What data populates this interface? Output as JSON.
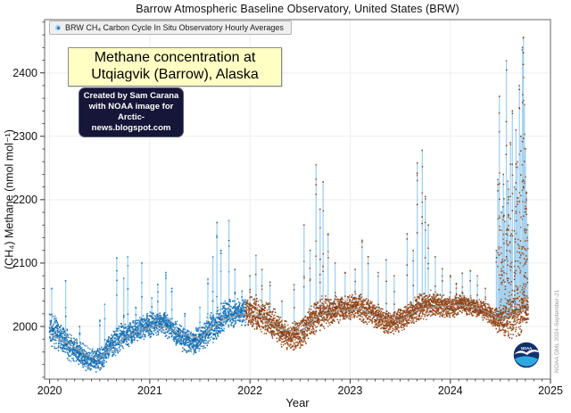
{
  "title": "Barrow Atmospheric Baseline Observatory, United States (BRW)",
  "legend": {
    "label": "BRW CH₄ Carbon Cycle In Situ Observatory Hourly Averages"
  },
  "annotation_box": {
    "line1": "Methane concentration at",
    "line2": "Utqiagvik (Barrow), Alaska"
  },
  "credit_box": {
    "line1": "Created by Sam Carana",
    "line2": "with NOAA image for",
    "line3": "Arctic-news.blogspot.com"
  },
  "watermark": "NOAA GML 2024-September-21",
  "noaa_logo": {
    "label": "NOAA",
    "navy": "#12316b",
    "blue": "#2fa8e1"
  },
  "chart_data": {
    "type": "scatter",
    "title": "Barrow Atmospheric Baseline Observatory, United States (BRW)",
    "xlabel": "Year",
    "ylabel": "(CH₄) Methane (nmol mol⁻¹)",
    "xlim": [
      2019.95,
      2025
    ],
    "ylim": [
      1917,
      2484
    ],
    "x_ticks": [
      "2020",
      "2021",
      "2022",
      "2023",
      "2024",
      "2025"
    ],
    "x_tick_values": [
      2020,
      2021,
      2022,
      2023,
      2024,
      2025
    ],
    "y_ticks": [
      "2000",
      "2100",
      "2200",
      "2300",
      "2400"
    ],
    "y_tick_values": [
      2000,
      2100,
      2200,
      2300,
      2400
    ],
    "x_minor_step": 0.08333,
    "y_minor_step": 20,
    "grid": true,
    "t_start": 2020.0,
    "t_end": 2024.78,
    "color_change_year": 2021.96,
    "colors": {
      "spike": "#a4d1f0",
      "dots_early": [
        "#0f5f9e",
        "#1a6fb0",
        "#2a7fc0",
        "#3f93cf"
      ],
      "dots_late": [
        "#8a421a",
        "#9c4f20",
        "#ad6030",
        "#7c3a14"
      ],
      "trend": "#9e9e9e",
      "grid": "#ededed",
      "spine": "#666666",
      "tick": "#333333"
    },
    "envelope": [
      [
        2020.0,
        1965,
        2030
      ],
      [
        2020.1,
        1958,
        2010
      ],
      [
        2020.2,
        1945,
        1992
      ],
      [
        2020.3,
        1935,
        1980
      ],
      [
        2020.4,
        1926,
        1968
      ],
      [
        2020.5,
        1928,
        1970
      ],
      [
        2020.6,
        1945,
        1990
      ],
      [
        2020.7,
        1958,
        2005
      ],
      [
        2020.8,
        1968,
        2010
      ],
      [
        2020.9,
        1976,
        2018
      ],
      [
        2021.0,
        1982,
        2024
      ],
      [
        2021.1,
        1984,
        2028
      ],
      [
        2021.2,
        1978,
        2022
      ],
      [
        2021.3,
        1962,
        2005
      ],
      [
        2021.4,
        1955,
        1998
      ],
      [
        2021.5,
        1958,
        2002
      ],
      [
        2021.6,
        1970,
        2020
      ],
      [
        2021.7,
        1982,
        2040
      ],
      [
        2021.8,
        1994,
        2046
      ],
      [
        2021.9,
        2000,
        2046
      ],
      [
        2022.0,
        1996,
        2050
      ],
      [
        2022.1,
        1990,
        2046
      ],
      [
        2022.2,
        1982,
        2038
      ],
      [
        2022.3,
        1968,
        2018
      ],
      [
        2022.4,
        1960,
        2005
      ],
      [
        2022.5,
        1964,
        2014
      ],
      [
        2022.6,
        1975,
        2035
      ],
      [
        2022.7,
        1990,
        2052
      ],
      [
        2022.8,
        2000,
        2050
      ],
      [
        2022.9,
        2006,
        2048
      ],
      [
        2023.0,
        2008,
        2052
      ],
      [
        2023.1,
        2006,
        2054
      ],
      [
        2023.2,
        2000,
        2046
      ],
      [
        2023.3,
        1990,
        2032
      ],
      [
        2023.4,
        1986,
        2025
      ],
      [
        2023.5,
        1990,
        2030
      ],
      [
        2023.6,
        1998,
        2042
      ],
      [
        2023.7,
        2006,
        2055
      ],
      [
        2023.8,
        2012,
        2058
      ],
      [
        2023.9,
        2012,
        2055
      ],
      [
        2024.0,
        2012,
        2050
      ],
      [
        2024.1,
        2016,
        2054
      ],
      [
        2024.2,
        2016,
        2050
      ],
      [
        2024.3,
        2010,
        2044
      ],
      [
        2024.4,
        2002,
        2036
      ],
      [
        2024.48,
        1988,
        2030
      ],
      [
        2024.55,
        1982,
        2040
      ],
      [
        2024.62,
        1978,
        2060
      ],
      [
        2024.7,
        1982,
        2070
      ],
      [
        2024.78,
        1990,
        2060
      ]
    ],
    "spikes": [
      [
        2020.02,
        2060
      ],
      [
        2020.16,
        2072
      ],
      [
        2020.3,
        2000
      ],
      [
        2020.5,
        2010
      ],
      [
        2020.55,
        2035
      ],
      [
        2020.67,
        2108
      ],
      [
        2020.74,
        2076
      ],
      [
        2020.78,
        2110
      ],
      [
        2020.86,
        2030
      ],
      [
        2020.92,
        2100
      ],
      [
        2021.02,
        2045
      ],
      [
        2021.08,
        2066
      ],
      [
        2021.16,
        2085
      ],
      [
        2021.22,
        2060
      ],
      [
        2021.35,
        2020
      ],
      [
        2021.5,
        2030
      ],
      [
        2021.58,
        2075
      ],
      [
        2021.63,
        2110
      ],
      [
        2021.67,
        2164
      ],
      [
        2021.71,
        2120
      ],
      [
        2021.79,
        2167
      ],
      [
        2021.85,
        2090
      ],
      [
        2021.92,
        2056
      ],
      [
        2022.0,
        2080
      ],
      [
        2022.06,
        2112
      ],
      [
        2022.12,
        2090
      ],
      [
        2022.2,
        2070
      ],
      [
        2022.32,
        2040
      ],
      [
        2022.44,
        2066
      ],
      [
        2022.54,
        2160
      ],
      [
        2022.6,
        2120
      ],
      [
        2022.66,
        2255
      ],
      [
        2022.7,
        2185
      ],
      [
        2022.73,
        2228
      ],
      [
        2022.78,
        2146
      ],
      [
        2022.85,
        2100
      ],
      [
        2022.95,
        2085
      ],
      [
        2023.05,
        2090
      ],
      [
        2023.12,
        2136
      ],
      [
        2023.18,
        2110
      ],
      [
        2023.28,
        2085
      ],
      [
        2023.36,
        2105
      ],
      [
        2023.44,
        2080
      ],
      [
        2023.57,
        2146
      ],
      [
        2023.63,
        2120
      ],
      [
        2023.67,
        2258
      ],
      [
        2023.72,
        2278
      ],
      [
        2023.75,
        2205
      ],
      [
        2023.78,
        2160
      ],
      [
        2023.85,
        2110
      ],
      [
        2023.92,
        2091
      ],
      [
        2024.0,
        2080
      ],
      [
        2024.06,
        2068
      ],
      [
        2024.12,
        2084
      ],
      [
        2024.2,
        2088
      ],
      [
        2024.27,
        2080
      ],
      [
        2024.35,
        2060
      ],
      [
        2024.46,
        2120
      ],
      [
        2024.49,
        2363
      ],
      [
        2024.51,
        2180
      ],
      [
        2024.53,
        2240
      ],
      [
        2024.56,
        2419
      ],
      [
        2024.58,
        2200
      ],
      [
        2024.6,
        2290
      ],
      [
        2024.62,
        2340
      ],
      [
        2024.64,
        2220
      ],
      [
        2024.655,
        2310
      ],
      [
        2024.67,
        2260
      ],
      [
        2024.69,
        2380
      ],
      [
        2024.705,
        2300
      ],
      [
        2024.72,
        2440
      ],
      [
        2024.73,
        2456
      ],
      [
        2024.74,
        2350
      ],
      [
        2024.75,
        2280
      ],
      [
        2024.76,
        2210
      ],
      [
        2024.77,
        2140
      ]
    ],
    "burst": {
      "t0": 2024.47,
      "t1": 2024.78,
      "min": 2060,
      "max": 2240,
      "density": 0.55
    },
    "trend": [
      [
        2020.0,
        1988
      ],
      [
        2020.2,
        1972
      ],
      [
        2020.4,
        1952
      ],
      [
        2020.5,
        1950
      ],
      [
        2020.7,
        1978
      ],
      [
        2020.9,
        1994
      ],
      [
        2021.1,
        2002
      ],
      [
        2021.3,
        1988
      ],
      [
        2021.5,
        1982
      ],
      [
        2021.7,
        2008
      ],
      [
        2021.9,
        2020
      ],
      [
        2022.1,
        2016
      ],
      [
        2022.3,
        1996
      ],
      [
        2022.5,
        1990
      ],
      [
        2022.7,
        2018
      ],
      [
        2022.9,
        2026
      ],
      [
        2023.1,
        2028
      ],
      [
        2023.3,
        2012
      ],
      [
        2023.5,
        2010
      ],
      [
        2023.7,
        2028
      ],
      [
        2023.9,
        2032
      ],
      [
        2024.1,
        2034
      ],
      [
        2024.3,
        2028
      ],
      [
        2024.5,
        2012
      ],
      [
        2024.7,
        2022
      ]
    ]
  }
}
